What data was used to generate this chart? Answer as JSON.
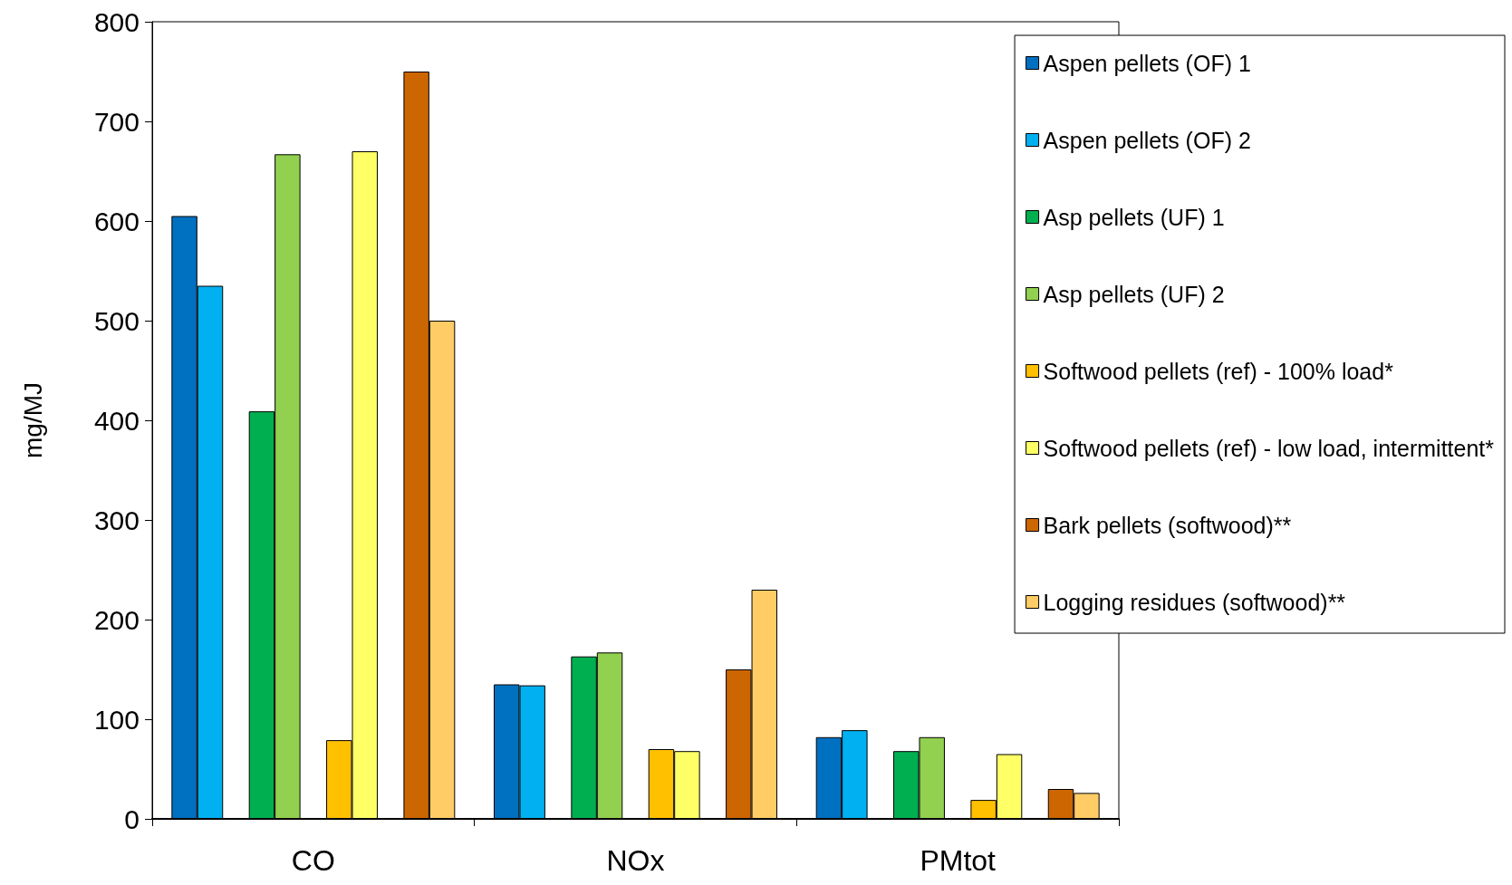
{
  "chart_data": {
    "type": "bar",
    "ylabel": "mg/MJ",
    "categories": [
      "CO",
      "NOx",
      "PMtot"
    ],
    "series": [
      {
        "name": "Aspen pellets (OF) 1",
        "color": "#0070c0",
        "values": [
          605,
          135,
          82
        ]
      },
      {
        "name": "Aspen pellets (OF) 2",
        "color": "#00b0f0",
        "values": [
          535,
          134,
          89
        ]
      },
      {
        "name": "Asp pellets (UF) 1",
        "color": "#00b050",
        "values": [
          409,
          163,
          68
        ]
      },
      {
        "name": "Asp pellets (UF) 2",
        "color": "#92d050",
        "values": [
          667,
          167,
          82
        ]
      },
      {
        "name": "Softwood pellets (ref) - 100% load*",
        "color": "#ffc000",
        "values": [
          79,
          70,
          19
        ]
      },
      {
        "name": "Softwood pellets (ref) - low load, intermittent*",
        "color": "#ffff66",
        "values": [
          670,
          68,
          65
        ]
      },
      {
        "name": "Bark pellets (softwood)**",
        "color": "#cc6600",
        "values": [
          750,
          150,
          30
        ]
      },
      {
        "name": "Logging residues (softwood)**",
        "color": "#ffcc66",
        "values": [
          500,
          230,
          26
        ]
      }
    ],
    "ylim": [
      0,
      800
    ],
    "yticks": [
      0,
      100,
      200,
      300,
      400,
      500,
      600,
      700,
      800
    ],
    "grid": false,
    "legend": "top right"
  }
}
